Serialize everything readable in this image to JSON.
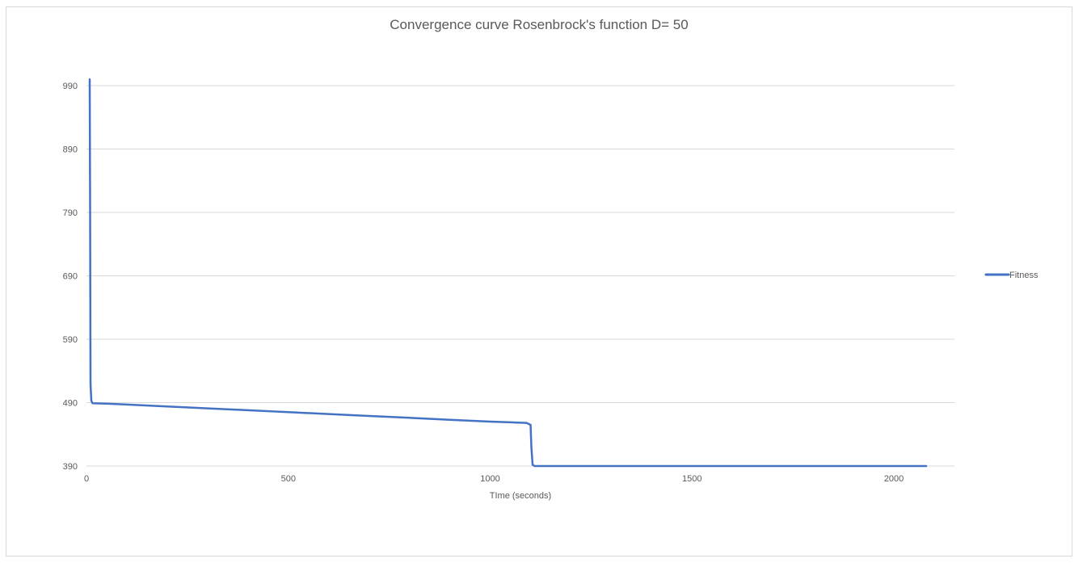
{
  "chart_data": {
    "type": "line",
    "title": "Convergence curve Rosenbrock's function D= 50",
    "xlabel": "TIme (seconds)",
    "ylabel": "",
    "xlim": [
      0,
      2150
    ],
    "ylim": [
      390,
      990
    ],
    "x_ticks": [
      0,
      500,
      1000,
      1500,
      2000
    ],
    "x_tick_labels": [
      "0",
      "500",
      "1000",
      "1500",
      "2000"
    ],
    "y_ticks": [
      390,
      490,
      590,
      690,
      790,
      890,
      990
    ],
    "y_tick_labels": [
      "390",
      "490",
      "590",
      "690",
      "790",
      "890",
      "990"
    ],
    "grid": "horizontal",
    "legend_position": "right",
    "series": [
      {
        "name": "Fitness",
        "color": "#4472c4",
        "x": [
          8,
          9,
          10,
          12,
          15,
          50,
          100,
          200,
          300,
          400,
          500,
          600,
          700,
          800,
          900,
          1000,
          1090,
          1100,
          1102,
          1105,
          1110,
          1200,
          1500,
          2000,
          2080
        ],
        "y": [
          1000,
          800,
          520,
          493,
          489,
          488.5,
          487,
          484,
          481,
          478,
          475,
          472,
          469,
          466,
          463,
          460,
          458,
          455,
          420,
          392,
          390,
          390,
          390,
          390,
          390
        ]
      }
    ]
  }
}
